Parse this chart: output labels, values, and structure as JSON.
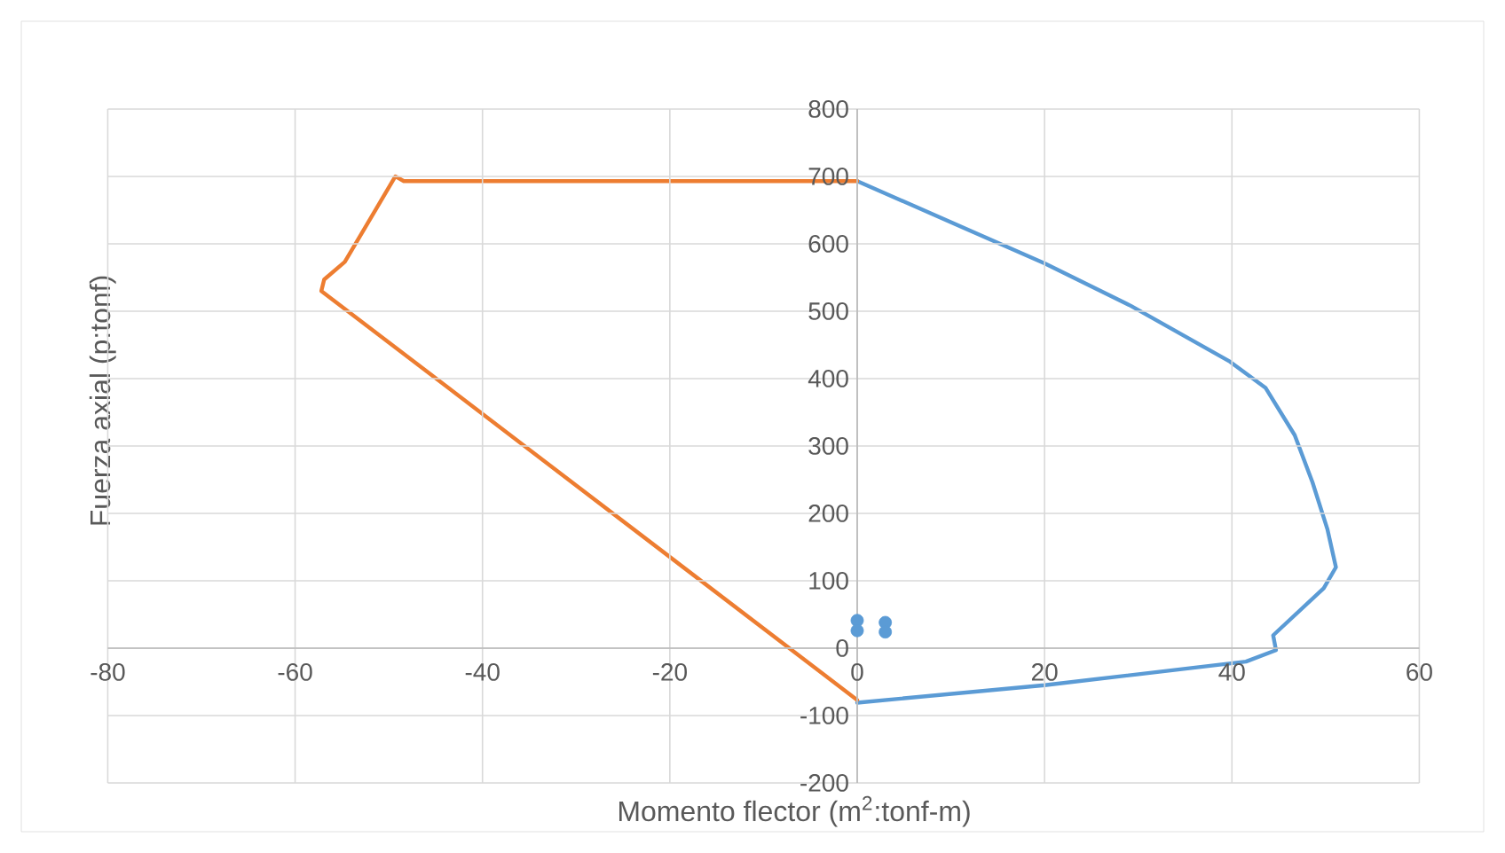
{
  "chart_data": {
    "type": "line",
    "xlabel": "Momento flector (m$^{2}$:tonf-m)",
    "ylabel": "Fuerza axial (p:tonf)",
    "xlim": [
      -80,
      60
    ],
    "xticks": [
      -80,
      -60,
      -40,
      -20,
      0,
      20,
      40,
      60
    ],
    "ylim": [
      -200,
      800
    ],
    "yticks": [
      -200,
      -100,
      0,
      100,
      200,
      300,
      400,
      500,
      600,
      700,
      800
    ],
    "grid": true,
    "marker": "none",
    "line_style": "solid",
    "series": [
      {
        "color": "#5b9bd5",
        "x": [
          0,
          20,
          29.2,
          39.8,
          43.6,
          46.7,
          48.6,
          50.2,
          51.1,
          49.8,
          44.4,
          44.7,
          41.5,
          20,
          0
        ],
        "values": [
          693,
          571,
          508,
          425,
          386,
          316,
          246,
          176,
          120,
          89,
          19,
          -3,
          -20,
          -55,
          -81
        ]
      },
      {
        "color": "#ed7d31",
        "x": [
          0,
          -48.4,
          -49.3,
          -54.7,
          -56.9,
          -57.2,
          0
        ],
        "values": [
          693,
          693,
          700,
          573,
          547,
          530,
          -77
        ]
      },
      {
        "type": "scatter",
        "marker": "circle",
        "color": "#5b9bd5",
        "x": [
          0,
          0,
          3,
          3
        ],
        "values": [
          41,
          26,
          38,
          24
        ]
      }
    ]
  }
}
